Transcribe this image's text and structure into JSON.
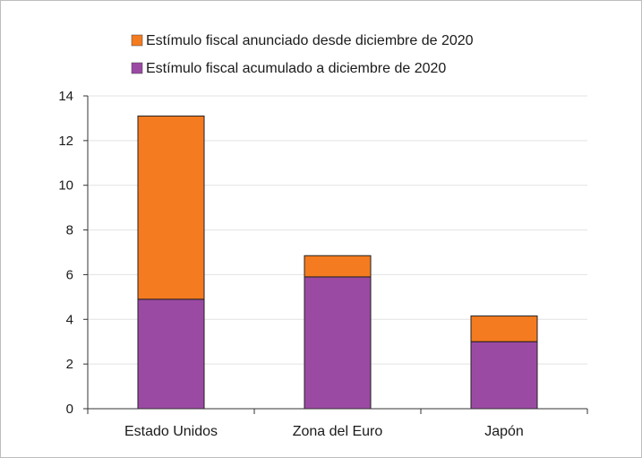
{
  "chart_data": {
    "type": "bar",
    "stacked": true,
    "categories": [
      "Estado Unidos",
      "Zona del Euro",
      "Japón"
    ],
    "series": [
      {
        "name": "Estímulo fiscal acumulado a diciembre de 2020",
        "values": [
          4.9,
          5.9,
          3.0
        ],
        "color": "#9b4aa3"
      },
      {
        "name": "Estímulo fiscal anunciado desde diciembre de 2020",
        "values": [
          8.2,
          0.95,
          1.15
        ],
        "color": "#f47b20"
      }
    ],
    "ylim": [
      0,
      14
    ],
    "yticks": [
      0,
      2,
      4,
      6,
      8,
      10,
      12,
      14
    ],
    "grid": true,
    "legend_position": "top",
    "legend_order": [
      1,
      0
    ]
  }
}
